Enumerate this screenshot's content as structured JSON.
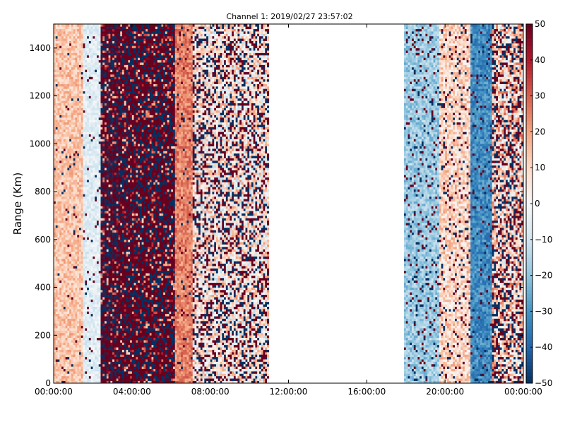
{
  "chart_data": {
    "type": "heatmap",
    "title": "Channel 1: 2019/02/27 23:57:02",
    "xlabel": "",
    "ylabel": "Range (Km)",
    "x_ticks": [
      "00:00:00",
      "04:00:00",
      "08:00:00",
      "12:00:00",
      "16:00:00",
      "20:00:00",
      "00:00:00"
    ],
    "y_ticks": [
      "0",
      "200",
      "400",
      "600",
      "800",
      "1000",
      "1200",
      "1400"
    ],
    "colorbar_ticks": [
      "−50",
      "−40",
      "−30",
      "−20",
      "−10",
      "0",
      "10",
      "20",
      "30",
      "40",
      "50"
    ],
    "xlim_hours": [
      0,
      24
    ],
    "ylim_km": [
      0,
      1500
    ],
    "clim": [
      -50,
      50
    ],
    "colormap": "RdBu_r",
    "colors": {
      "low": "#053061",
      "mid": "#f7f7f7",
      "high": "#67001f"
    },
    "bands": [
      {
        "start_h": 0.0,
        "end_h": 1.55,
        "pattern": "mostly positive, light orange",
        "mean": 14,
        "spread": 8,
        "noise": 0.04
      },
      {
        "start_h": 1.55,
        "end_h": 2.4,
        "pattern": "near zero, light blue",
        "mean": -6,
        "spread": 6,
        "noise": 0.05
      },
      {
        "start_h": 2.4,
        "end_h": 6.15,
        "pattern": "saturated noise, dark red and dark blue",
        "mean": 40,
        "spread": 30,
        "noise": 0.45
      },
      {
        "start_h": 6.15,
        "end_h": 7.1,
        "pattern": "strong positive, orange-red",
        "mean": 25,
        "spread": 8,
        "noise": 0.05
      },
      {
        "start_h": 7.1,
        "end_h": 11.0,
        "pattern": "mixed noise, red/white/blue",
        "mean": 5,
        "spread": 18,
        "noise": 0.35
      },
      {
        "start_h": 11.0,
        "end_h": 17.9,
        "pattern": "no data",
        "mean": null,
        "spread": 0,
        "noise": 0
      },
      {
        "start_h": 17.9,
        "end_h": 19.7,
        "pattern": "negative, blue",
        "mean": -18,
        "spread": 8,
        "noise": 0.12
      },
      {
        "start_h": 19.7,
        "end_h": 21.3,
        "pattern": "mixed light red/blue",
        "mean": 10,
        "spread": 12,
        "noise": 0.12
      },
      {
        "start_h": 21.3,
        "end_h": 22.4,
        "pattern": "strong negative, dark blue",
        "mean": -32,
        "spread": 8,
        "noise": 0.08
      },
      {
        "start_h": 22.4,
        "end_h": 24.0,
        "pattern": "mixed with dark red streaks",
        "mean": 10,
        "spread": 20,
        "noise": 0.35
      }
    ]
  }
}
